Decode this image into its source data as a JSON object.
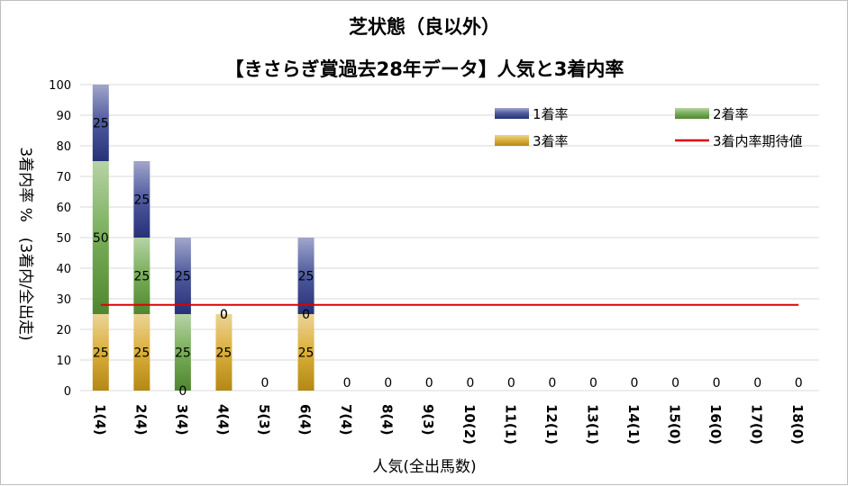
{
  "chart_data": {
    "type": "bar",
    "stacked": true,
    "title": "芝状態（良以外）",
    "subtitle": "【きさらぎ賞過去28年データ】人気と3着内率",
    "xlabel": "人気(全出馬数)",
    "ylabel": "3着内率 %　(3着内/全出走)",
    "categories": [
      "1(4)",
      "2(4)",
      "3(4)",
      "4(4)",
      "5(3)",
      "6(4)",
      "7(4)",
      "8(4)",
      "9(3)",
      "10(2)",
      "11(1)",
      "12(1)",
      "13(1)",
      "14(1)",
      "15(0)",
      "16(0)",
      "17(0)",
      "18(0)"
    ],
    "ylim": [
      0,
      100
    ],
    "yticks": [
      0,
      10,
      20,
      30,
      40,
      50,
      60,
      70,
      80,
      90,
      100
    ],
    "grid": true,
    "legend_position": "top-right",
    "series": [
      {
        "name": "3着率",
        "color": "#d4a017",
        "values": [
          25,
          25,
          0,
          25,
          0,
          25,
          0,
          0,
          0,
          0,
          0,
          0,
          0,
          0,
          0,
          0,
          0,
          0
        ]
      },
      {
        "name": "2着率",
        "color": "#5f9e3a",
        "values": [
          50,
          25,
          25,
          0,
          0,
          0,
          0,
          0,
          0,
          0,
          0,
          0,
          0,
          0,
          0,
          0,
          0,
          0
        ]
      },
      {
        "name": "1着率",
        "color": "#2e3a8c",
        "values": [
          25,
          25,
          25,
          0,
          0,
          25,
          0,
          0,
          0,
          0,
          0,
          0,
          0,
          0,
          0,
          0,
          0,
          0
        ]
      }
    ],
    "line": {
      "name": "3着内率期待値",
      "color": "#e00000",
      "value": 28
    },
    "point_labels": [
      "",
      "",
      "",
      "",
      "0",
      "",
      "0",
      "0",
      "0",
      "0",
      "0",
      "0",
      "0",
      "0",
      "0",
      "0",
      "0",
      "0"
    ]
  }
}
